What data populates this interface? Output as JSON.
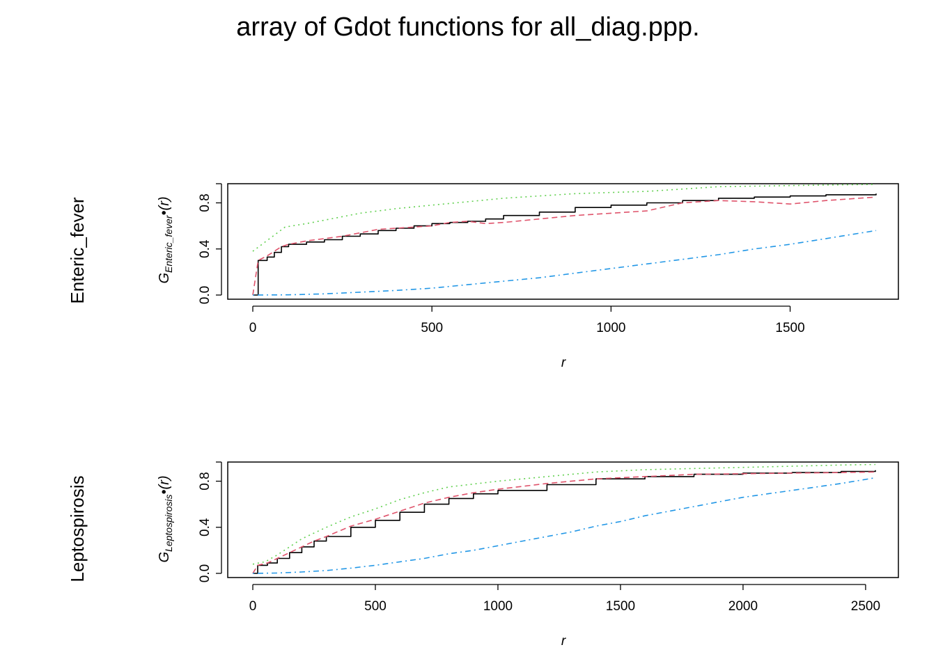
{
  "title": "array of Gdot functions for all_diag.ppp.",
  "colors": {
    "obs": "#000000",
    "theo": "#df536b",
    "hi": "#61d04f",
    "lo": "#2297e6"
  },
  "chart_data": [
    {
      "type": "line",
      "row_label": "Enteric_fever",
      "xlabel": "r",
      "ylabel": {
        "main": "G",
        "sub": "Enteric_fever",
        "dot": "•",
        "tail": "(r)"
      },
      "xlim": [
        0,
        1740
      ],
      "ylim": [
        0,
        0.93
      ],
      "xticks": [
        0,
        500,
        1000,
        1500
      ],
      "xtick_labels": [
        "0",
        "500",
        "1000",
        "1500"
      ],
      "yticks": [
        0,
        0.4,
        0.8
      ],
      "ytick_labels": [
        "0.0",
        "0.4",
        "0.8"
      ],
      "series": [
        {
          "key": "obs",
          "style": "solid",
          "color": "#000000",
          "x": [
            0,
            15,
            40,
            60,
            80,
            100,
            150,
            200,
            250,
            300,
            350,
            400,
            450,
            500,
            550,
            600,
            650,
            700,
            800,
            900,
            1000,
            1100,
            1200,
            1300,
            1400,
            1500,
            1600,
            1740
          ],
          "y": [
            0,
            0.3,
            0.33,
            0.37,
            0.42,
            0.44,
            0.46,
            0.48,
            0.51,
            0.53,
            0.56,
            0.58,
            0.6,
            0.62,
            0.63,
            0.64,
            0.66,
            0.69,
            0.72,
            0.76,
            0.78,
            0.8,
            0.82,
            0.84,
            0.85,
            0.86,
            0.87,
            0.88
          ]
        },
        {
          "key": "theo",
          "style": "dashed",
          "color": "#df536b",
          "x": [
            0,
            15,
            40,
            60,
            80,
            100,
            150,
            200,
            250,
            300,
            350,
            400,
            450,
            500,
            550,
            600,
            650,
            700,
            800,
            900,
            1000,
            1100,
            1200,
            1300,
            1400,
            1500,
            1600,
            1740
          ],
          "y": [
            0,
            0.3,
            0.34,
            0.38,
            0.42,
            0.44,
            0.47,
            0.49,
            0.51,
            0.54,
            0.57,
            0.58,
            0.59,
            0.6,
            0.63,
            0.64,
            0.62,
            0.63,
            0.66,
            0.69,
            0.71,
            0.73,
            0.8,
            0.82,
            0.81,
            0.79,
            0.82,
            0.85
          ]
        },
        {
          "key": "hi",
          "style": "dotted",
          "color": "#61d04f",
          "x": [
            0,
            30,
            60,
            90,
            150,
            200,
            300,
            400,
            500,
            600,
            700,
            800,
            900,
            1000,
            1100,
            1200,
            1300,
            1400,
            1500,
            1600,
            1740
          ],
          "y": [
            0.38,
            0.45,
            0.52,
            0.59,
            0.62,
            0.65,
            0.71,
            0.75,
            0.78,
            0.81,
            0.84,
            0.86,
            0.88,
            0.89,
            0.9,
            0.92,
            0.94,
            0.945,
            0.95,
            0.955,
            0.96
          ]
        },
        {
          "key": "lo",
          "style": "dotdash",
          "color": "#2297e6",
          "x": [
            0,
            100,
            200,
            300,
            400,
            500,
            600,
            700,
            800,
            900,
            1000,
            1100,
            1200,
            1300,
            1400,
            1500,
            1600,
            1740
          ],
          "y": [
            0,
            0.002,
            0.01,
            0.025,
            0.04,
            0.06,
            0.09,
            0.12,
            0.15,
            0.19,
            0.23,
            0.27,
            0.31,
            0.35,
            0.4,
            0.44,
            0.49,
            0.56
          ]
        }
      ]
    },
    {
      "type": "line",
      "row_label": "Leptospirosis",
      "xlabel": "r",
      "ylabel": {
        "main": "G",
        "sub": "Leptospirosis",
        "dot": "•",
        "tail": "(r)"
      },
      "xlim": [
        0,
        2540
      ],
      "ylim": [
        0,
        0.93
      ],
      "xticks": [
        0,
        500,
        1000,
        1500,
        2000,
        2500
      ],
      "xtick_labels": [
        "0",
        "500",
        "1000",
        "1500",
        "2000",
        "2500"
      ],
      "yticks": [
        0,
        0.4,
        0.8
      ],
      "ytick_labels": [
        "0.0",
        "0.4",
        "0.8"
      ],
      "series": [
        {
          "key": "obs",
          "style": "solid",
          "color": "#000000",
          "x": [
            0,
            20,
            60,
            100,
            150,
            200,
            250,
            300,
            400,
            500,
            600,
            700,
            800,
            900,
            1000,
            1200,
            1400,
            1600,
            1800,
            2000,
            2200,
            2400,
            2540
          ],
          "y": [
            0,
            0.07,
            0.09,
            0.13,
            0.18,
            0.23,
            0.28,
            0.32,
            0.4,
            0.46,
            0.53,
            0.6,
            0.65,
            0.69,
            0.72,
            0.77,
            0.82,
            0.84,
            0.86,
            0.87,
            0.875,
            0.885,
            0.895
          ]
        },
        {
          "key": "theo",
          "style": "dashed",
          "color": "#df536b",
          "x": [
            0,
            20,
            60,
            100,
            150,
            200,
            250,
            300,
            400,
            500,
            600,
            700,
            800,
            900,
            1000,
            1200,
            1400,
            1600,
            1800,
            2000,
            2200,
            2400,
            2540
          ],
          "y": [
            0,
            0.07,
            0.09,
            0.13,
            0.18,
            0.23,
            0.28,
            0.32,
            0.41,
            0.47,
            0.54,
            0.61,
            0.66,
            0.7,
            0.73,
            0.78,
            0.82,
            0.84,
            0.86,
            0.865,
            0.87,
            0.875,
            0.88
          ]
        },
        {
          "key": "hi",
          "style": "dotted",
          "color": "#61d04f",
          "x": [
            0,
            50,
            100,
            200,
            300,
            400,
            500,
            600,
            700,
            800,
            1000,
            1200,
            1400,
            1600,
            1800,
            2000,
            2200,
            2400,
            2540
          ],
          "y": [
            0.08,
            0.1,
            0.16,
            0.3,
            0.4,
            0.49,
            0.56,
            0.64,
            0.7,
            0.75,
            0.8,
            0.84,
            0.88,
            0.9,
            0.91,
            0.92,
            0.93,
            0.94,
            0.945
          ]
        },
        {
          "key": "lo",
          "style": "dotdash",
          "color": "#2297e6",
          "x": [
            0,
            100,
            200,
            300,
            400,
            500,
            600,
            700,
            800,
            900,
            1000,
            1100,
            1200,
            1300,
            1400,
            1500,
            1600,
            1700,
            1800,
            1900,
            2000,
            2100,
            2200,
            2300,
            2400,
            2540
          ],
          "y": [
            0,
            0.003,
            0.012,
            0.025,
            0.045,
            0.07,
            0.1,
            0.13,
            0.17,
            0.2,
            0.24,
            0.28,
            0.32,
            0.36,
            0.41,
            0.45,
            0.5,
            0.54,
            0.58,
            0.62,
            0.66,
            0.69,
            0.72,
            0.75,
            0.78,
            0.83
          ]
        }
      ]
    }
  ]
}
